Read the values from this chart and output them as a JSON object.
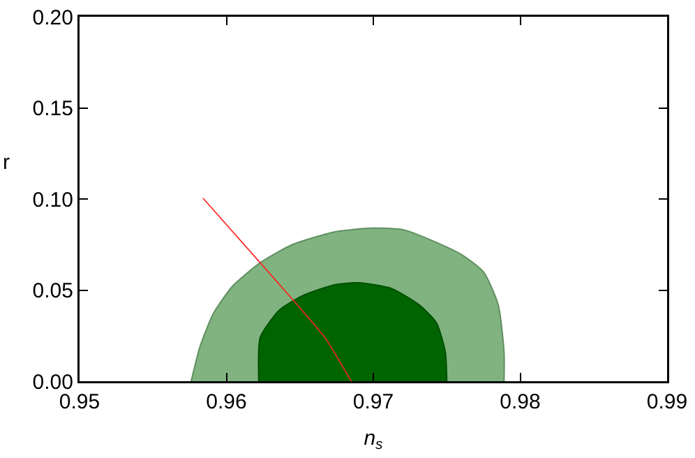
{
  "chart_data": {
    "type": "area",
    "xlabel": "n$_{s}$",
    "ylabel": "r",
    "xlim": [
      0.95,
      0.99
    ],
    "xticks": [
      0.95,
      0.96,
      0.97,
      0.98,
      0.99
    ],
    "ylim": [
      0,
      0.2
    ],
    "yticks": [
      {
        "value": 0,
        "label": "0.00"
      },
      {
        "value": 0.05,
        "label": "0.05"
      },
      {
        "value": 0.1,
        "label": "0.10"
      },
      {
        "value": 0.15,
        "label": "0.15"
      },
      {
        "value": 0.2,
        "label": "0.20"
      }
    ],
    "grid": false,
    "series": [
      {
        "color": "#80b380",
        "x": [
          0.9576,
          0.9582,
          0.9591,
          0.9604,
          0.9623,
          0.9645,
          0.9674,
          0.9699,
          0.9721,
          0.9759,
          0.9775,
          0.9785,
          0.9789,
          0.9789
        ],
        "values": [
          0,
          0.019,
          0.037,
          0.052,
          0.065,
          0.075,
          0.082,
          0.084,
          0.083,
          0.07,
          0.06,
          0.042,
          0.016,
          0
        ]
      },
      {
        "color": "#006400",
        "x": [
          0.9622,
          0.9623,
          0.9636,
          0.9652,
          0.9674,
          0.969,
          0.9712,
          0.9731,
          0.9743,
          0.9749,
          0.975
        ],
        "values": [
          0,
          0.024,
          0.039,
          0.047,
          0.053,
          0.054,
          0.051,
          0.042,
          0.032,
          0.016,
          0
        ]
      },
      {
        "type": "line",
        "color": "#ff2020",
        "x": [
          0.9584,
          0.9623,
          0.9647,
          0.9667,
          0.9685
        ],
        "values": [
          0.1005,
          0.065,
          0.043,
          0.024,
          0
        ]
      }
    ]
  }
}
